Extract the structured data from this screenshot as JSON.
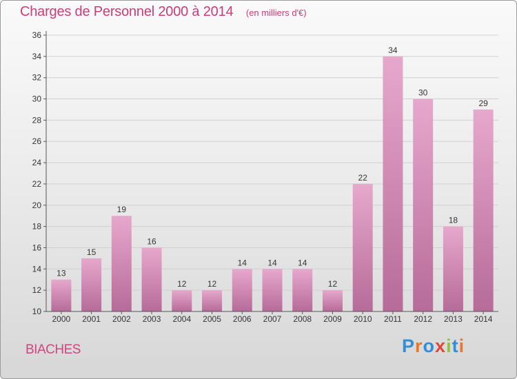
{
  "header": {
    "title": "Charges de Personnel 2000 à 2014",
    "subtitle": "(en milliers d'€)"
  },
  "footer": {
    "place": "BIACHES",
    "brand": "Proxiti",
    "brand_letter_colors": [
      "#2f8fd8",
      "#e8772a",
      "#2f8fd8",
      "#e0463a",
      "#8cc63f",
      "#2f8fd8",
      "#e8772a"
    ]
  },
  "colors": {
    "accent": "#cc3b7a",
    "bar_top": "#e7a8cd",
    "bar_bottom": "#b66b98",
    "axis": "#555555",
    "grid": "#d0d0d0"
  },
  "chart_data": {
    "type": "bar",
    "categories": [
      "2000",
      "2001",
      "2002",
      "2003",
      "2004",
      "2005",
      "2006",
      "2007",
      "2008",
      "2009",
      "2010",
      "2011",
      "2012",
      "2013",
      "2014"
    ],
    "values": [
      13,
      15,
      19,
      16,
      12,
      12,
      14,
      14,
      14,
      12,
      22,
      34,
      30,
      18,
      29
    ],
    "title": "Charges de Personnel 2000 à 2014",
    "subtitle": "(en milliers d'€)",
    "xlabel": "",
    "ylabel": "",
    "ylim": [
      10,
      36
    ],
    "yticks": [
      10,
      12,
      14,
      16,
      18,
      20,
      22,
      24,
      26,
      28,
      30,
      32,
      34,
      36
    ],
    "grid": true,
    "data_labels": true
  }
}
